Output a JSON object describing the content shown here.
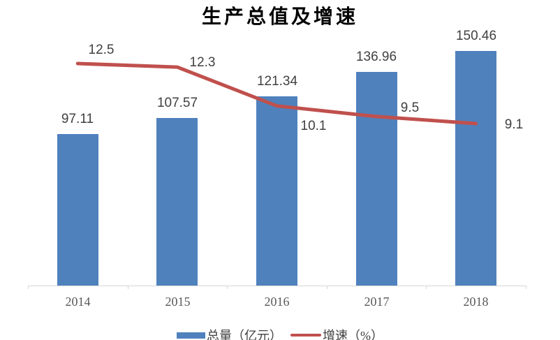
{
  "chart_data": {
    "type": "combo",
    "title": "生产总值及增速",
    "categories": [
      "2014",
      "2015",
      "2016",
      "2017",
      "2018"
    ],
    "series": [
      {
        "name": "总量（亿元）",
        "type": "bar",
        "color": "#4F81BD",
        "values": [
          97.11,
          107.57,
          121.34,
          136.96,
          150.46
        ],
        "labels": [
          "97.11",
          "107.57",
          "121.34",
          "136.96",
          "150.46"
        ]
      },
      {
        "name": "增速（%）",
        "type": "line",
        "color": "#C0504D",
        "values": [
          12.5,
          12.3,
          10.1,
          9.5,
          9.1
        ],
        "labels": [
          "12.5",
          "12.3",
          "10.1",
          "9.5",
          "9.1"
        ]
      }
    ],
    "legend_position": "bottom",
    "grid": false,
    "data_labels": true,
    "axes": {
      "x": {
        "tick_labels": [
          "2014",
          "2015",
          "2016",
          "2017",
          "2018"
        ],
        "line_visible": true
      },
      "y_primary": {
        "visible": false,
        "implied_range": [
          0,
          160
        ]
      },
      "y_secondary": {
        "visible": false,
        "implied_range": [
          9,
          13
        ]
      }
    }
  },
  "colors": {
    "bar": "#4F81BD",
    "line": "#C0504D",
    "data_label": "#404040",
    "tick_label": "#595959",
    "axis": "#D6D6D6",
    "title": "#000000",
    "background": "#FFFFFF"
  }
}
